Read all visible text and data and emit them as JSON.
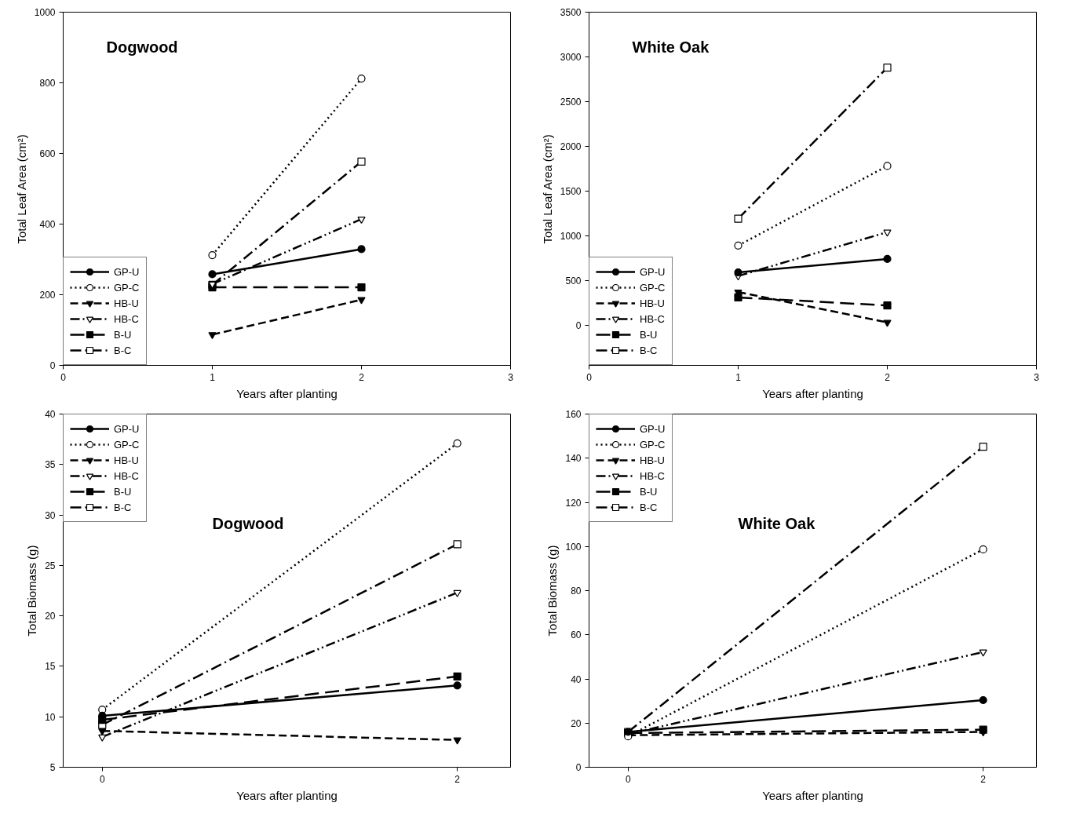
{
  "chart_data": [
    {
      "type": "line",
      "title": "Dogwood",
      "xlabel": "Years after planting",
      "ylabel": "Total Leaf Area (cm²)",
      "x": [
        1,
        2
      ],
      "xlim": [
        0,
        3
      ],
      "xticks": [
        0,
        1,
        2,
        3
      ],
      "ylim": [
        0,
        1000
      ],
      "yticks": [
        0,
        200,
        400,
        600,
        800,
        1000
      ],
      "legend": "bottom left",
      "grid": false,
      "series": [
        {
          "name": "GP-U",
          "color": "#000000",
          "values": [
            258,
            329
          ],
          "line_style": "solid",
          "marker": "circle"
        },
        {
          "name": "GP-C",
          "color": "#000000",
          "values": [
            312,
            812
          ],
          "line_style": "dotted",
          "marker": "circle_open"
        },
        {
          "name": "HB-U",
          "color": "#000000",
          "values": [
            87,
            186
          ],
          "line_style": "dashed",
          "marker": "triangle"
        },
        {
          "name": "HB-C",
          "color": "#000000",
          "values": [
            230,
            414
          ],
          "line_style": "dashdotdot",
          "marker": "triangle_open"
        },
        {
          "name": "B-U",
          "color": "#000000",
          "values": [
            221,
            221
          ],
          "line_style": "longdash",
          "marker": "square"
        },
        {
          "name": "B-C",
          "color": "#000000",
          "values": [
            228,
            577
          ],
          "line_style": "dashdot",
          "marker": "square_open"
        }
      ]
    },
    {
      "type": "line",
      "title": "White Oak",
      "xlabel": "Years after planting",
      "ylabel": "Total Leaf Area (cm²)",
      "x": [
        1,
        2
      ],
      "xlim": [
        0,
        3
      ],
      "xticks": [
        0,
        1,
        2,
        3
      ],
      "ylim": [
        -450,
        3500
      ],
      "yticks": [
        0,
        500,
        1000,
        1500,
        2000,
        2500,
        3000,
        3500
      ],
      "legend": "bottom left",
      "grid": false,
      "series": [
        {
          "name": "GP-U",
          "color": "#000000",
          "values": [
            590,
            740
          ],
          "line_style": "solid",
          "marker": "circle"
        },
        {
          "name": "GP-C",
          "color": "#000000",
          "values": [
            890,
            1780
          ],
          "line_style": "dotted",
          "marker": "circle_open"
        },
        {
          "name": "HB-U",
          "color": "#000000",
          "values": [
            370,
            30
          ],
          "line_style": "dashed",
          "marker": "triangle"
        },
        {
          "name": "HB-C",
          "color": "#000000",
          "values": [
            550,
            1040
          ],
          "line_style": "dashdotdot",
          "marker": "triangle_open"
        },
        {
          "name": "B-U",
          "color": "#000000",
          "values": [
            310,
            220
          ],
          "line_style": "longdash",
          "marker": "square"
        },
        {
          "name": "B-C",
          "color": "#000000",
          "values": [
            1190,
            2880
          ],
          "line_style": "dashdot",
          "marker": "square_open"
        }
      ]
    },
    {
      "type": "line",
      "title": "Dogwood",
      "xlabel": "Years after planting",
      "ylabel": "Total Biomass (g)",
      "x": [
        0,
        2
      ],
      "xlim": [
        -0.22,
        2.3
      ],
      "xticks": [
        0,
        2
      ],
      "ylim": [
        5,
        40
      ],
      "yticks": [
        5,
        10,
        15,
        20,
        25,
        30,
        35,
        40
      ],
      "legend": "top left",
      "grid": false,
      "series": [
        {
          "name": "GP-U",
          "color": "#000000",
          "values": [
            10.1,
            13.1
          ],
          "line_style": "solid",
          "marker": "circle"
        },
        {
          "name": "GP-C",
          "color": "#000000",
          "values": [
            10.7,
            37.1
          ],
          "line_style": "dotted",
          "marker": "circle_open"
        },
        {
          "name": "HB-U",
          "color": "#000000",
          "values": [
            8.6,
            7.7
          ],
          "line_style": "dashed",
          "marker": "triangle"
        },
        {
          "name": "HB-C",
          "color": "#000000",
          "values": [
            8.0,
            22.3
          ],
          "line_style": "dashdotdot",
          "marker": "triangle_open"
        },
        {
          "name": "B-U",
          "color": "#000000",
          "values": [
            9.7,
            14.0
          ],
          "line_style": "longdash",
          "marker": "square"
        },
        {
          "name": "B-C",
          "color": "#000000",
          "values": [
            9.2,
            27.1
          ],
          "line_style": "dashdot",
          "marker": "square_open"
        }
      ]
    },
    {
      "type": "line",
      "title": "White Oak",
      "xlabel": "Years after planting",
      "ylabel": "Total Biomass (g)",
      "x": [
        0,
        2
      ],
      "xlim": [
        -0.22,
        2.3
      ],
      "xticks": [
        0,
        2
      ],
      "ylim": [
        0,
        160
      ],
      "yticks": [
        0,
        20,
        40,
        60,
        80,
        100,
        120,
        140,
        160
      ],
      "legend": "top left",
      "grid": false,
      "series": [
        {
          "name": "GP-U",
          "color": "#000000",
          "values": [
            16,
            30.4
          ],
          "line_style": "solid",
          "marker": "circle"
        },
        {
          "name": "GP-C",
          "color": "#000000",
          "values": [
            14,
            98.7
          ],
          "line_style": "dotted",
          "marker": "circle_open"
        },
        {
          "name": "HB-U",
          "color": "#000000",
          "values": [
            14.5,
            16
          ],
          "line_style": "dashed",
          "marker": "triangle"
        },
        {
          "name": "HB-C",
          "color": "#000000",
          "values": [
            15,
            52.2
          ],
          "line_style": "dashdotdot",
          "marker": "triangle_open"
        },
        {
          "name": "B-U",
          "color": "#000000",
          "values": [
            15.5,
            17
          ],
          "line_style": "longdash",
          "marker": "square"
        },
        {
          "name": "B-C",
          "color": "#000000",
          "values": [
            16,
            145.2
          ],
          "line_style": "dashdot",
          "marker": "square_open"
        }
      ]
    }
  ]
}
